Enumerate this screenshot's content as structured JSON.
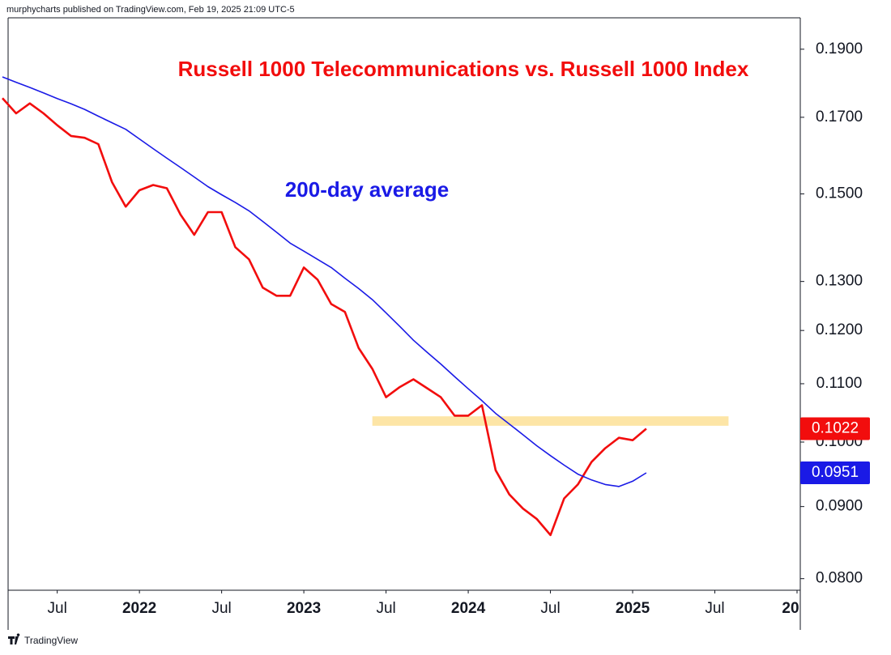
{
  "header": "murphycharts published on TradingView.com, Feb 19, 2025 21:09 UTC-5",
  "footer": "TradingView",
  "chart_data": {
    "type": "line",
    "title": "Russell 1000 Telecommunications vs. Russell 1000 Index",
    "annotations": [
      {
        "text": "200-day average",
        "color": "#1a1ae6"
      }
    ],
    "x": [
      "2021-03",
      "2021-04",
      "2021-05",
      "2021-06",
      "2021-07",
      "2021-08",
      "2021-09",
      "2021-10",
      "2021-11",
      "2021-12",
      "2022-01",
      "2022-02",
      "2022-03",
      "2022-04",
      "2022-05",
      "2022-06",
      "2022-07",
      "2022-08",
      "2022-09",
      "2022-10",
      "2022-11",
      "2022-12",
      "2023-01",
      "2023-02",
      "2023-03",
      "2023-04",
      "2023-05",
      "2023-06",
      "2023-07",
      "2023-08",
      "2023-09",
      "2023-10",
      "2023-11",
      "2023-12",
      "2024-01",
      "2024-02",
      "2024-03",
      "2024-04",
      "2024-05",
      "2024-06",
      "2024-07",
      "2024-08",
      "2024-09",
      "2024-10",
      "2024-11",
      "2024-12",
      "2025-01",
      "2025-02"
    ],
    "series": [
      {
        "name": "Russell 1000 Telecommunications vs. Russell 1000 Index",
        "color": "#f20d0d",
        "last_label": true,
        "values": [
          0.1754,
          0.1711,
          0.1739,
          0.1711,
          0.1678,
          0.1649,
          0.1644,
          0.1627,
          0.1529,
          0.1469,
          0.1509,
          0.1522,
          0.1514,
          0.145,
          0.1403,
          0.1456,
          0.1456,
          0.1375,
          0.1348,
          0.1287,
          0.127,
          0.127,
          0.133,
          0.1304,
          0.1253,
          0.1237,
          0.1166,
          0.1127,
          0.1076,
          0.1094,
          0.1108,
          0.1092,
          0.1076,
          0.1044,
          0.1044,
          0.1062,
          0.0955,
          0.0918,
          0.0897,
          0.0882,
          0.0859,
          0.0912,
          0.0933,
          0.0968,
          0.099,
          0.1007,
          0.1003,
          0.1022
        ]
      },
      {
        "name": "200-day average",
        "color": "#1a1ae6",
        "last_label": true,
        "values": [
          0.1816,
          0.18,
          0.1785,
          0.1769,
          0.1753,
          0.1738,
          0.1722,
          0.1703,
          0.1685,
          0.1667,
          0.1641,
          0.1615,
          0.159,
          0.1566,
          0.1542,
          0.1518,
          0.1498,
          0.1479,
          0.1459,
          0.1434,
          0.1409,
          0.1384,
          0.1366,
          0.1348,
          0.133,
          0.1307,
          0.1285,
          0.1262,
          0.1235,
          0.1208,
          0.1181,
          0.1158,
          0.1136,
          0.1113,
          0.1091,
          0.107,
          0.1048,
          0.103,
          0.1012,
          0.0994,
          0.0978,
          0.0963,
          0.0949,
          0.094,
          0.0933,
          0.093,
          0.0938,
          0.0951
        ]
      }
    ],
    "highlight": {
      "from": "2023-06",
      "to": "2025-08",
      "low": 0.1027,
      "high": 0.1043,
      "color": "#fde5a6"
    },
    "xlim": [
      "2021-03",
      "2026-01"
    ],
    "xticks": [
      {
        "value": "2021-07",
        "label": "Jul"
      },
      {
        "value": "2022-01",
        "label": "2022"
      },
      {
        "value": "2022-07",
        "label": "Jul"
      },
      {
        "value": "2023-01",
        "label": "2023"
      },
      {
        "value": "2023-07",
        "label": "Jul"
      },
      {
        "value": "2024-01",
        "label": "2024"
      },
      {
        "value": "2024-07",
        "label": "Jul"
      },
      {
        "value": "2025-01",
        "label": "2025"
      },
      {
        "value": "2025-07",
        "label": "Jul"
      },
      {
        "value": "2026-01",
        "label": "20"
      }
    ],
    "ylim": [
      0.0785,
      0.2
    ],
    "log_scale": true,
    "yticks": [
      {
        "value": 0.08,
        "label": "0.0800"
      },
      {
        "value": 0.09,
        "label": "0.0900"
      },
      {
        "value": 0.1,
        "label": "0.1000"
      },
      {
        "value": 0.11,
        "label": "0.1100"
      },
      {
        "value": 0.12,
        "label": "0.1200"
      },
      {
        "value": 0.13,
        "label": "0.1300"
      },
      {
        "value": 0.15,
        "label": "0.1500"
      },
      {
        "value": 0.17,
        "label": "0.1700"
      },
      {
        "value": 0.19,
        "label": "0.1900"
      }
    ],
    "grid": false
  }
}
